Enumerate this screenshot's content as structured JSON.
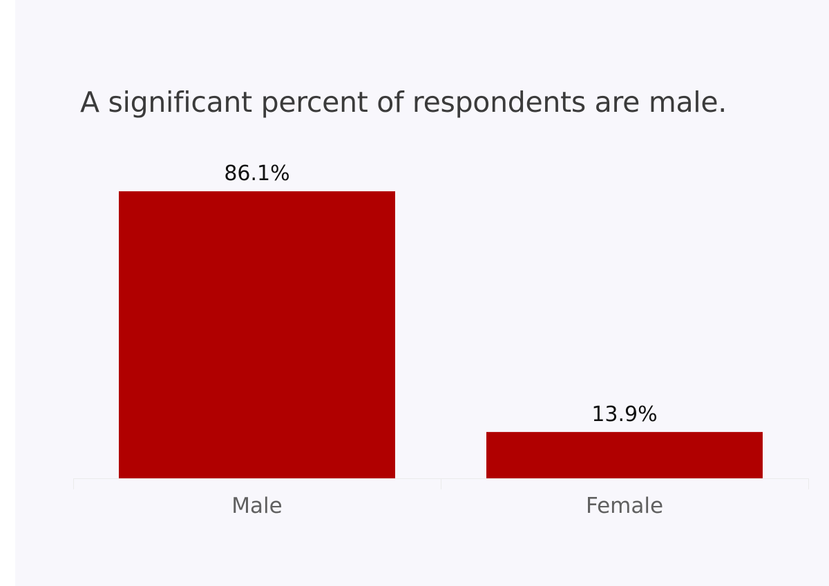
{
  "chart_data": {
    "type": "bar",
    "title": "A significant percent of respondents are male.",
    "categories": [
      "Male",
      "Female"
    ],
    "values": [
      86.1,
      13.9
    ],
    "value_labels": [
      "86.1%",
      "13.9%"
    ],
    "xlabel": "",
    "ylabel": "",
    "ylim": [
      0,
      100
    ],
    "grid": false,
    "bar_color": "#b00000",
    "background_color": "#f8f7fc"
  }
}
